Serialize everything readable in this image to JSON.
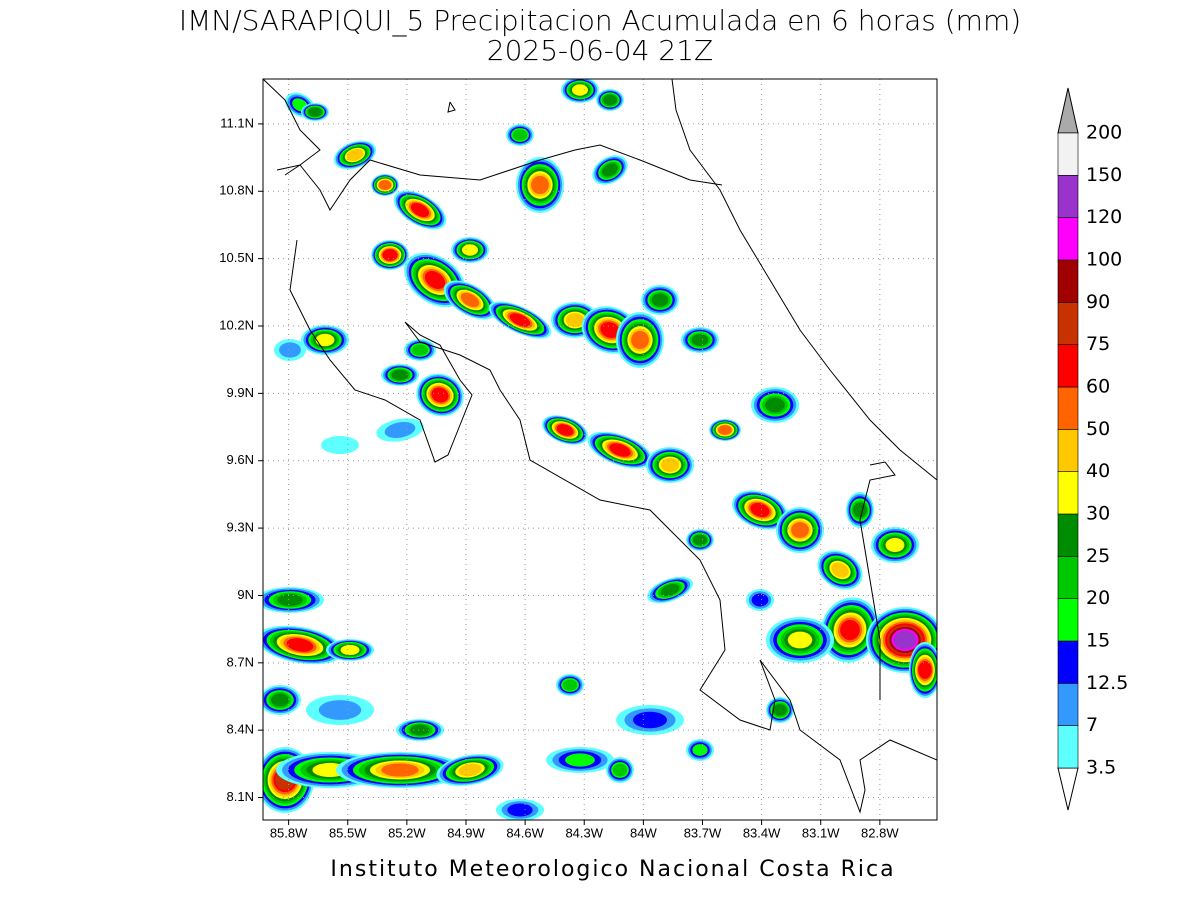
{
  "map": {
    "title": "IMN/SARAPIQUI_5 Precipitacion Acumulada en 6 horas (mm)",
    "subtitle": "2025-06-04 21Z",
    "credit": "Instituto Meteorologico Nacional Costa Rica",
    "lonlim": [
      -85.93,
      -82.51
    ],
    "latlim": [
      8.0,
      11.3
    ],
    "lon_ticks": [
      {
        "value": -85.8,
        "label": "85.8W"
      },
      {
        "value": -85.5,
        "label": "85.5W"
      },
      {
        "value": -85.2,
        "label": "85.2W"
      },
      {
        "value": -84.9,
        "label": "84.9W"
      },
      {
        "value": -84.6,
        "label": "84.6W"
      },
      {
        "value": -84.3,
        "label": "84.3W"
      },
      {
        "value": -84.0,
        "label": "84W"
      },
      {
        "value": -83.7,
        "label": "83.7W"
      },
      {
        "value": -83.4,
        "label": "83.4W"
      },
      {
        "value": -83.1,
        "label": "83.1W"
      },
      {
        "value": -82.8,
        "label": "82.8W"
      }
    ],
    "lat_ticks": [
      {
        "value": 8.1,
        "label": "8.1N"
      },
      {
        "value": 8.4,
        "label": "8.4N"
      },
      {
        "value": 8.7,
        "label": "8.7N"
      },
      {
        "value": 9.0,
        "label": "9N"
      },
      {
        "value": 9.3,
        "label": "9.3N"
      },
      {
        "value": 9.6,
        "label": "9.6N"
      },
      {
        "value": 9.9,
        "label": "9.9N"
      },
      {
        "value": 10.2,
        "label": "10.2N"
      },
      {
        "value": 10.5,
        "label": "10.5N"
      },
      {
        "value": 10.8,
        "label": "10.8N"
      },
      {
        "value": 11.1,
        "label": "11.1N"
      }
    ],
    "grid": true,
    "colorbar": {
      "levels": [
        3.5,
        7,
        12.5,
        15,
        20,
        25,
        30,
        40,
        50,
        60,
        75,
        90,
        100,
        120,
        150,
        200
      ],
      "colors": [
        "#5dffff",
        "#3399ff",
        "#0000ff",
        "#00ff00",
        "#00c800",
        "#008c00",
        "#ffff00",
        "#ffc800",
        "#ff6400",
        "#ff0000",
        "#c83200",
        "#a00000",
        "#ff00ff",
        "#9933cc",
        "#f2f2f2"
      ],
      "under_color": "#ffffff",
      "over_color": "#aaaaaa"
    }
  }
}
